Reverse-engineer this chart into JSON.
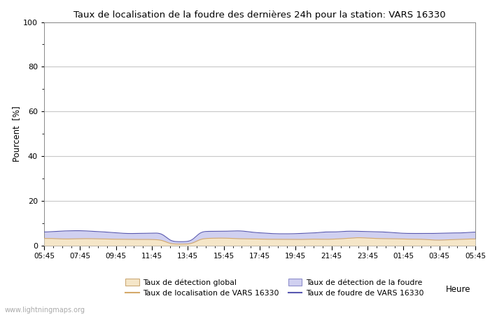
{
  "title": "Taux de localisation de la foudre des dernières 24h pour la station: VARS 16330",
  "xlabel": "Heure",
  "ylabel": "Pourcent  [%]",
  "watermark": "www.lightningmaps.org",
  "ylim": [
    0,
    100
  ],
  "yticks": [
    0,
    20,
    40,
    60,
    80,
    100
  ],
  "yticks_minor": [
    10,
    30,
    50,
    70,
    90
  ],
  "x_labels": [
    "05:45",
    "07:45",
    "09:45",
    "11:45",
    "13:45",
    "15:45",
    "17:45",
    "19:45",
    "21:45",
    "23:45",
    "01:45",
    "03:45",
    "05:45"
  ],
  "color_global_fill": "#f5e6c8",
  "color_global_line": "#d4a96a",
  "color_foudre_fill": "#d0d0f0",
  "color_foudre_line": "#5858b0",
  "legend_labels": [
    "Taux de détection global",
    "Taux de localisation de VARS 16330",
    "Taux de détection de la foudre",
    "Taux de foudre de VARS 16330"
  ],
  "background_color": "#ffffff",
  "grid_color": "#c8c8c8",
  "n_points": 289,
  "global_base_mean": 3.0,
  "foudre_base_mean": 6.0,
  "seed": 42
}
